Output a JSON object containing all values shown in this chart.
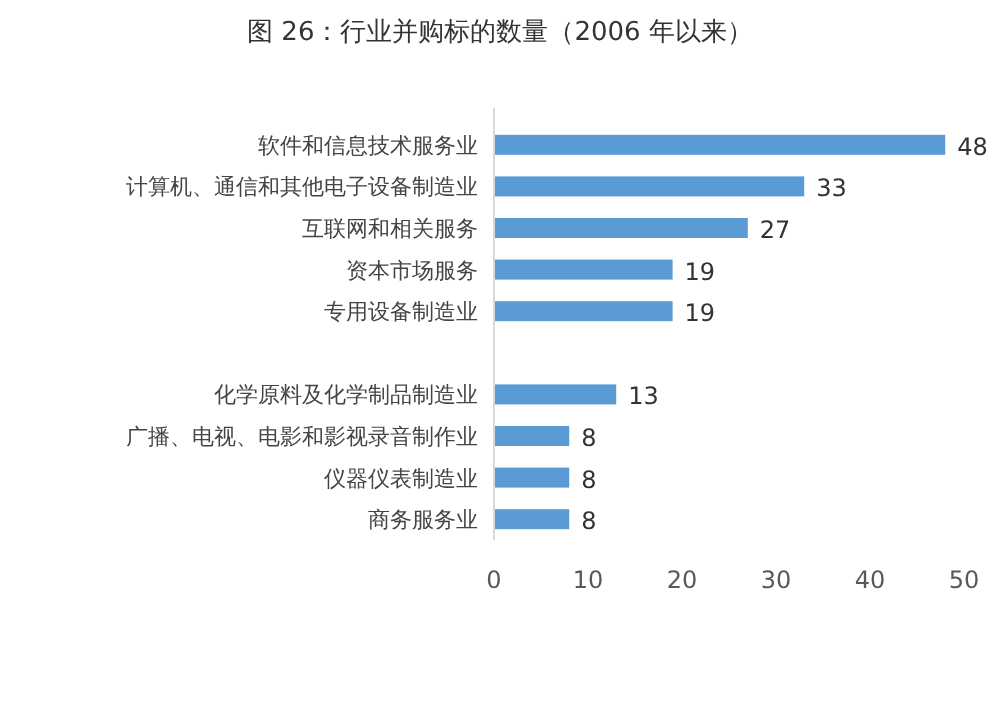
{
  "chart_data": {
    "type": "bar",
    "orientation": "horizontal",
    "title": "图 26：行业并购标的数量（2006 年以来）",
    "categories": [
      "软件和信息技术服务业",
      "计算机、通信和其他电子设备制造业",
      "互联网和相关服务",
      "资本市场服务",
      "专用设备制造业",
      null,
      "化学原料及化学制品制造业",
      "广播、电视、电影和影视录音制作业",
      "仪器仪表制造业",
      "商务服务业"
    ],
    "values": [
      48,
      33,
      27,
      19,
      19,
      null,
      13,
      8,
      8,
      8
    ],
    "color": "#5b9bd5",
    "data_labels": true,
    "xlim": [
      0,
      50
    ],
    "xticks": [
      0,
      10,
      20,
      30,
      40,
      50
    ],
    "grid": false
  }
}
